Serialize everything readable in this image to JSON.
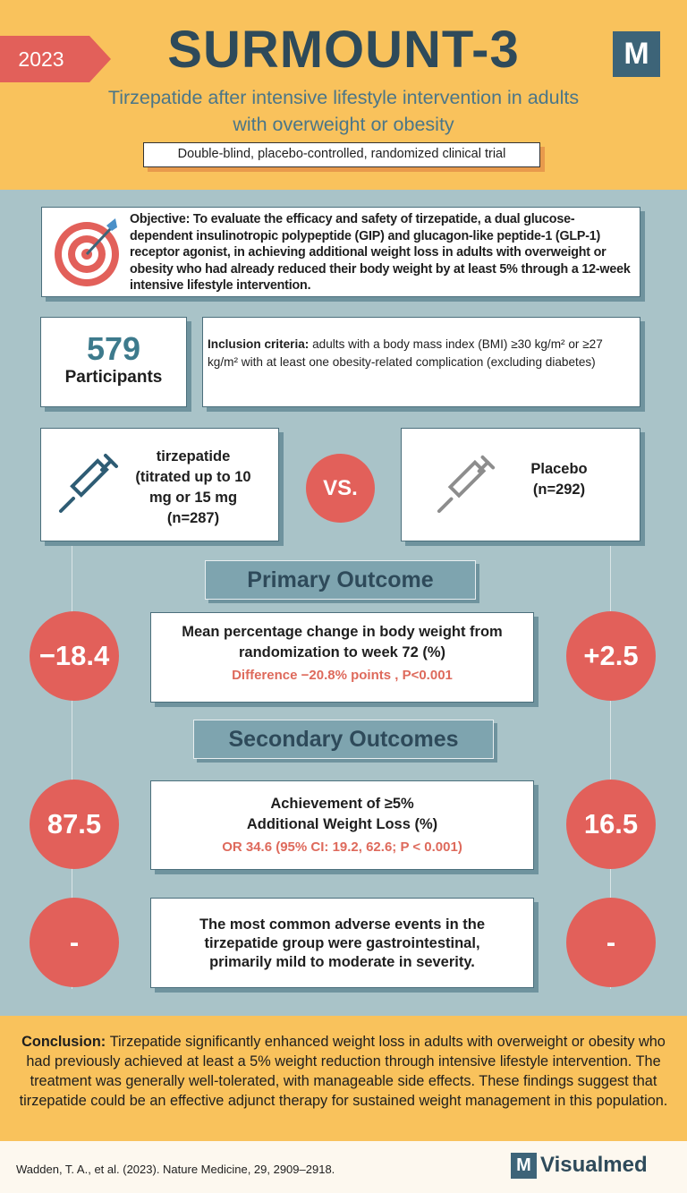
{
  "header": {
    "year": "2023",
    "title": "SURMOUNT-3",
    "logo": "M",
    "subtitle": "Tirzepatide after intensive lifestyle intervention in adults with overweight or obesity",
    "design": "Double-blind, placebo-controlled, randomized clinical trial"
  },
  "objective": {
    "label": "Objective:",
    "text": "To evaluate the efficacy and safety of tirzepatide, a dual glucose-dependent insulinotropic polypeptide (GIP) and glucagon-like peptide-1 (GLP-1) receptor agonist, in achieving additional weight loss in adults with overweight or obesity who had already reduced their body weight by at least 5% through a 12-week intensive lifestyle intervention."
  },
  "participants": {
    "count": "579",
    "label": "Participants"
  },
  "inclusion": {
    "label": "Inclusion criteria:",
    "text": "adults with a body mass index (BMI) ≥30 kg/m² or ≥27 kg/m² with at least one obesity-related complication (excluding diabetes)"
  },
  "arms": {
    "treatment": "tirzepatide (titrated up to 10 mg or 15 mg (n=287)",
    "vs": "VS.",
    "control": "Placebo (n=292)"
  },
  "primary": {
    "heading": "Primary Outcome",
    "tirzepatide": "−18.4",
    "placebo": "+2.5",
    "measure": "Mean percentage change in body weight from randomization to week 72 (%)",
    "result": "Difference −20.8% points , P<0.001"
  },
  "secondary": {
    "heading": "Secondary Outcomes",
    "outcomes": [
      {
        "tirzepatide": "87.5",
        "placebo": "16.5",
        "measure": "Achievement of ≥5% Additional Weight Loss (%)",
        "result": "OR 34.6 (95% CI: 19.2, 62.6; P < 0.001)"
      },
      {
        "tirzepatide": "-",
        "placebo": "-",
        "measure": "The most common adverse events in the tirzepatide group were gastrointestinal, primarily mild to moderate in severity."
      }
    ]
  },
  "conclusion": {
    "label": "Conclusion:",
    "text": "Tirzepatide significantly enhanced weight loss in adults with overweight or obesity who had previously achieved at least a 5% weight reduction through intensive lifestyle intervention. The treatment was generally well-tolerated, with manageable side effects. These findings suggest that tirzepatide could be an effective adjunct therapy for sustained weight management in this population."
  },
  "footer": {
    "citation": "Wadden, T. A., et al. (2023). Nature Medicine, 29, 2909–2918.",
    "brand_mark": "M",
    "brand": "Visualmed"
  }
}
